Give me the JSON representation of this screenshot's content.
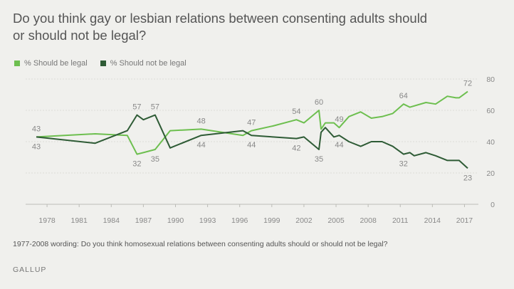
{
  "title": "Do you think gay or lesbian relations between consenting adults should or should not be legal?",
  "legend": [
    {
      "label": "% Should be legal",
      "color": "#6dbf4f"
    },
    {
      "label": "% Should not be legal",
      "color": "#2e5b35"
    }
  ],
  "footnote": "1977-2008 wording: Do you think homosexual relations between consenting adults should or should not be legal?",
  "source": "GALLUP",
  "chart_data": {
    "type": "line",
    "xlim": [
      1976,
      2018.3
    ],
    "ylim": [
      0,
      80
    ],
    "x_ticks": [
      1978,
      1981,
      1984,
      1987,
      1990,
      1993,
      1996,
      1999,
      2002,
      2005,
      2008,
      2011,
      2014,
      2017
    ],
    "y_ticks": [
      0,
      20,
      40,
      60,
      80
    ],
    "grid": true,
    "legend_position": "top-left",
    "series": [
      {
        "name": "% Should be legal",
        "color": "#6dbf4f",
        "points": [
          [
            1977,
            43
          ],
          [
            1982.5,
            45
          ],
          [
            1985.5,
            44
          ],
          [
            1986.4,
            32
          ],
          [
            1987,
            33
          ],
          [
            1988.1,
            35
          ],
          [
            1989.5,
            47
          ],
          [
            1992.4,
            48
          ],
          [
            1996.3,
            44
          ],
          [
            1997.1,
            47
          ],
          [
            1999.1,
            50
          ],
          [
            2001.3,
            54
          ],
          [
            2002,
            52
          ],
          [
            2003.4,
            60
          ],
          [
            2003.6,
            48
          ],
          [
            2004,
            52
          ],
          [
            2004.8,
            52
          ],
          [
            2005.3,
            49
          ],
          [
            2006.2,
            56
          ],
          [
            2007.3,
            59
          ],
          [
            2008.3,
            55
          ],
          [
            2009.3,
            56
          ],
          [
            2010.3,
            58
          ],
          [
            2011.3,
            64
          ],
          [
            2011.9,
            62
          ],
          [
            2013.4,
            65
          ],
          [
            2014.3,
            64
          ],
          [
            2015.4,
            69
          ],
          [
            2016.2,
            68
          ],
          [
            2016.5,
            68
          ],
          [
            2017.3,
            72
          ]
        ]
      },
      {
        "name": "% Should not be legal",
        "color": "#2e5b35",
        "points": [
          [
            1977,
            43
          ],
          [
            1982.5,
            39
          ],
          [
            1985.5,
            47
          ],
          [
            1986.4,
            57
          ],
          [
            1987,
            54
          ],
          [
            1988.1,
            57
          ],
          [
            1989.5,
            36
          ],
          [
            1992.4,
            44
          ],
          [
            1996.3,
            47
          ],
          [
            1997.1,
            44
          ],
          [
            1999.1,
            43
          ],
          [
            2001.3,
            42
          ],
          [
            2002,
            43
          ],
          [
            2003.4,
            35
          ],
          [
            2003.6,
            46
          ],
          [
            2004,
            49
          ],
          [
            2004.8,
            43
          ],
          [
            2005.3,
            44
          ],
          [
            2006.2,
            40
          ],
          [
            2007.3,
            37
          ],
          [
            2008.3,
            40
          ],
          [
            2009.3,
            40
          ],
          [
            2010.3,
            37
          ],
          [
            2011.3,
            32
          ],
          [
            2011.9,
            33
          ],
          [
            2012.3,
            31
          ],
          [
            2013.4,
            33
          ],
          [
            2014.3,
            31
          ],
          [
            2015.4,
            28
          ],
          [
            2016.2,
            28
          ],
          [
            2016.5,
            28
          ],
          [
            2017.3,
            23
          ]
        ]
      }
    ],
    "data_labels": [
      {
        "series": 0,
        "x": 1977,
        "y": 43,
        "text": "43",
        "pos": "above"
      },
      {
        "series": 1,
        "x": 1977,
        "y": 43,
        "text": "43",
        "pos": "below"
      },
      {
        "series": 1,
        "x": 1986.4,
        "y": 57,
        "text": "57",
        "pos": "above"
      },
      {
        "series": 0,
        "x": 1986.4,
        "y": 32,
        "text": "32",
        "pos": "below"
      },
      {
        "series": 1,
        "x": 1988.1,
        "y": 57,
        "text": "57",
        "pos": "above"
      },
      {
        "series": 0,
        "x": 1988.1,
        "y": 35,
        "text": "35",
        "pos": "below"
      },
      {
        "series": 0,
        "x": 1992.4,
        "y": 48,
        "text": "48",
        "pos": "above"
      },
      {
        "series": 1,
        "x": 1992.4,
        "y": 44,
        "text": "44",
        "pos": "below"
      },
      {
        "series": 0,
        "x": 1997.1,
        "y": 47,
        "text": "47",
        "pos": "above"
      },
      {
        "series": 1,
        "x": 1997.1,
        "y": 44,
        "text": "44",
        "pos": "below"
      },
      {
        "series": 0,
        "x": 2001.3,
        "y": 54,
        "text": "54",
        "pos": "above"
      },
      {
        "series": 1,
        "x": 2001.3,
        "y": 42,
        "text": "42",
        "pos": "below"
      },
      {
        "series": 0,
        "x": 2003.4,
        "y": 60,
        "text": "60",
        "pos": "above"
      },
      {
        "series": 1,
        "x": 2003.4,
        "y": 35,
        "text": "35",
        "pos": "below"
      },
      {
        "series": 0,
        "x": 2005.3,
        "y": 49,
        "text": "49",
        "pos": "above"
      },
      {
        "series": 1,
        "x": 2005.3,
        "y": 44,
        "text": "44",
        "pos": "below"
      },
      {
        "series": 0,
        "x": 2011.3,
        "y": 64,
        "text": "64",
        "pos": "above"
      },
      {
        "series": 1,
        "x": 2011.3,
        "y": 32,
        "text": "32",
        "pos": "below"
      },
      {
        "series": 0,
        "x": 2017.3,
        "y": 72,
        "text": "72",
        "pos": "above"
      },
      {
        "series": 1,
        "x": 2017.3,
        "y": 23,
        "text": "23",
        "pos": "below"
      }
    ]
  }
}
